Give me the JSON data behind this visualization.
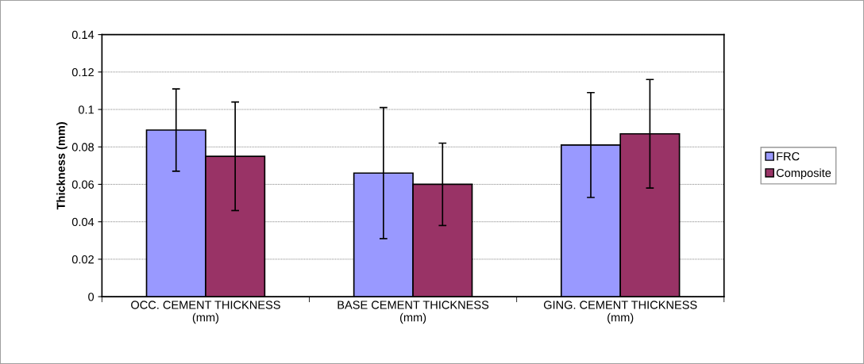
{
  "chart_data": {
    "type": "bar",
    "ylabel": "Thickness (mm)",
    "categories": [
      "OCC. CEMENT THICKNESS\n(mm)",
      "BASE CEMENT THICKNESS\n(mm)",
      "GING. CEMENT THICKNESS\n(mm)"
    ],
    "series": [
      {
        "name": "FRC",
        "color": "#9999ff",
        "values": [
          0.089,
          0.066,
          0.081
        ],
        "errors": [
          0.022,
          0.035,
          0.028
        ]
      },
      {
        "name": "Composite",
        "color": "#993366",
        "values": [
          0.075,
          0.06,
          0.087
        ],
        "errors": [
          0.029,
          0.022,
          0.029
        ]
      }
    ],
    "ylim": [
      0,
      0.14
    ],
    "yticks": [
      0,
      0.02,
      0.04,
      0.06,
      0.08,
      0.1,
      0.12,
      0.14
    ],
    "grid": "y",
    "legend": "right"
  }
}
